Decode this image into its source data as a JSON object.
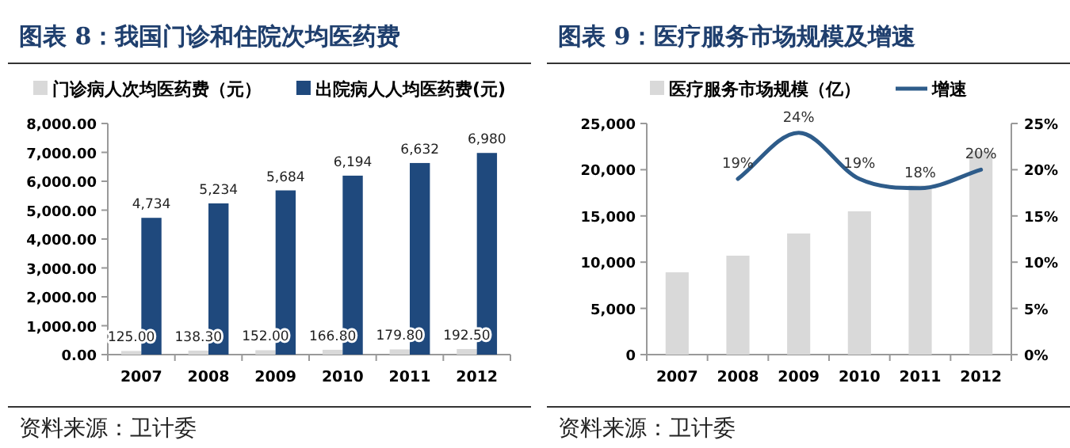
{
  "chart_data": [
    {
      "type": "bar",
      "title": "图表 8：我国门诊和住院次均医药费",
      "categories": [
        "2007",
        "2008",
        "2009",
        "2010",
        "2011",
        "2012"
      ],
      "series": [
        {
          "name": "门诊病人次均医药费（元）",
          "color": "#d9d9d9",
          "values": [
            125,
            138.3,
            152,
            166.8,
            179.8,
            192.5
          ],
          "value_labels": [
            "125.00",
            "138.30",
            "152.00",
            "166.80",
            "179.80",
            "192.50"
          ]
        },
        {
          "name": "出院病人人均医药费(元)",
          "color": "#1f497d",
          "values": [
            4734,
            5234,
            5684,
            6194,
            6632,
            6980
          ],
          "value_labels": [
            "4,734",
            "5,234",
            "5,684",
            "6,194",
            "6,632",
            "6,980"
          ]
        }
      ],
      "ylim": [
        0,
        8000
      ],
      "yticks": [
        {
          "value": 0,
          "label": "0.00"
        },
        {
          "value": 1000,
          "label": "1,000.00"
        },
        {
          "value": 2000,
          "label": "2,000.00"
        },
        {
          "value": 3000,
          "label": "3,000.00"
        },
        {
          "value": 4000,
          "label": "4,000.00"
        },
        {
          "value": 5000,
          "label": "5,000.00"
        },
        {
          "value": 6000,
          "label": "6,000.00"
        },
        {
          "value": 7000,
          "label": "7,000.00"
        },
        {
          "value": 8000,
          "label": "8,000.00"
        }
      ],
      "legend": "top",
      "annotations": [
        "资料来源：卫计委"
      ]
    },
    {
      "type": "bar",
      "title": "图表 9：医疗服务市场规模及增速",
      "categories": [
        "2007",
        "2008",
        "2009",
        "2010",
        "2011",
        "2012"
      ],
      "series": [
        {
          "name": "医疗服务市场规模（亿）",
          "color": "#d9d9d9",
          "values": [
            8900,
            10700,
            13100,
            15500,
            18300,
            22000
          ]
        },
        {
          "name": "增速",
          "type": "line",
          "axis": "y2",
          "color": "#2e5c8a",
          "values": [
            null,
            19,
            24,
            19,
            18,
            20
          ],
          "value_labels": [
            null,
            "19%",
            "24%",
            "19%",
            "18%",
            "20%"
          ]
        }
      ],
      "ylim": [
        0,
        25000
      ],
      "yticks": [
        0,
        {
          "value": 5000,
          "label": "5,000"
        },
        {
          "value": 10000,
          "label": "10,000"
        },
        {
          "value": 15000,
          "label": "15,000"
        },
        {
          "value": 20000,
          "label": "20,000"
        },
        {
          "value": 25000,
          "label": "25,000"
        }
      ],
      "y2lim": [
        0,
        25
      ],
      "y2ticks": [
        {
          "value": 0,
          "label": "0%"
        },
        {
          "value": 5,
          "label": "5%"
        },
        {
          "value": 10,
          "label": "10%"
        },
        {
          "value": 15,
          "label": "15%"
        },
        {
          "value": 20,
          "label": "20%"
        },
        {
          "value": 25,
          "label": "25%"
        }
      ],
      "legend": "top",
      "annotations": [
        "资料来源：卫计委"
      ]
    }
  ]
}
